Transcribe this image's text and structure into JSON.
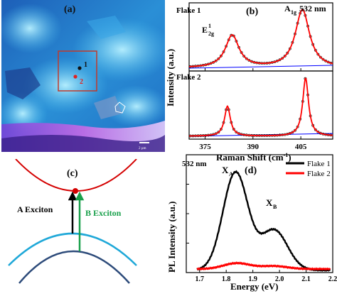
{
  "panels": {
    "a": {
      "label": "(a)",
      "point_1": "1",
      "point_2": "2",
      "scalebar_text": "2 µm"
    },
    "b": {
      "label": "(b)",
      "flake1_label": "Flake 1",
      "flake2_label": "Flake 2",
      "mode_E_main": "E",
      "mode_E_sup": "1",
      "mode_E_sub": "2g",
      "mode_A_main": "A",
      "mode_A_sub": "1g",
      "laser": "532 nm",
      "ylabel": "Intensity (a.u.)",
      "xlabel_main": "Raman Shift (cm",
      "xlabel_sup": "-1",
      "xlabel_close": ")"
    },
    "c": {
      "label": "(c)",
      "a_exciton": "A Exciton",
      "b_exciton": "B Exciton"
    },
    "d": {
      "label": "(d)",
      "laser": "532 nm",
      "peak_A_main": "X",
      "peak_A_sub": "A",
      "peak_B_main": "X",
      "peak_B_sub": "B",
      "ylabel": "PL Intensity (a.u.)",
      "xlabel": "Energy (eV)"
    }
  },
  "colors": {
    "fit_red": "#ff0000",
    "baseline_blue": "#0000ff",
    "flake1_black": "#000000",
    "flake2_red": "#ff0000",
    "conduction_red": "#d40000",
    "valence_cyan": "#1fa8d8",
    "valence_navy": "#2d4b7a",
    "a_arrow": "#000000",
    "b_arrow": "#19a04b",
    "frame_red": "#c0392b"
  },
  "chart_data": [
    {
      "type": "line",
      "panel": "b",
      "title": "",
      "xlabel": "Raman Shift (cm-1)",
      "ylabel": "Intensity (a.u.)",
      "xlim": [
        370,
        415
      ],
      "xticks": [
        375,
        390,
        405
      ],
      "series": [
        {
          "name": "Flake 1",
          "peaks": [
            {
              "center": 383.5,
              "height": 0.52,
              "width": 2.6
            },
            {
              "center": 405.5,
              "height": 0.93,
              "width": 2.7
            }
          ]
        },
        {
          "name": "Flake 2",
          "peaks": [
            {
              "center": 382.0,
              "height": 0.48,
              "width": 1.1
            },
            {
              "center": 406.5,
              "height": 0.93,
              "width": 1.1
            }
          ]
        }
      ]
    },
    {
      "type": "line",
      "panel": "d",
      "title": "",
      "xlabel": "Energy (eV)",
      "ylabel": "PL Intensity (a.u.)",
      "xlim": [
        1.65,
        2.2
      ],
      "xticks": [
        1.7,
        1.8,
        1.9,
        2.0,
        2.1,
        2.2
      ],
      "legend_position": "top-right",
      "series": [
        {
          "name": "Flake 1",
          "peaks": [
            {
              "center": 1.835,
              "height": 0.83,
              "width": 0.047
            },
            {
              "center": 1.98,
              "height": 0.34,
              "width": 0.05
            }
          ],
          "baseline": 0.02
        },
        {
          "name": "Flake 2",
          "peaks": [
            {
              "center": 1.84,
              "height": 0.05,
              "width": 0.05
            },
            {
              "center": 1.98,
              "height": 0.025,
              "width": 0.05
            }
          ],
          "baseline": 0.03
        }
      ]
    }
  ]
}
